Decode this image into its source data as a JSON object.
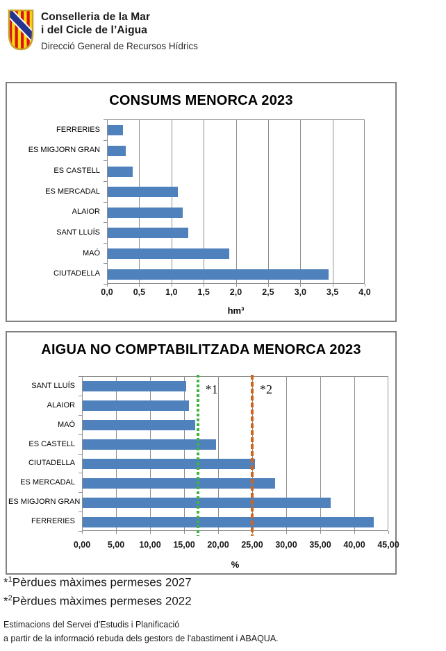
{
  "header": {
    "line1": "Conselleria de la Mar",
    "line2": "i del Cicle de l’Aigua",
    "line3": "Direcció General de Recursos Hídrics",
    "logo": "escut-illes-balears"
  },
  "chart_data": [
    {
      "type": "bar",
      "orientation": "horizontal",
      "title": "CONSUMS MENORCA 2023",
      "categories": [
        "FERRERIES",
        "ES MIGJORN GRAN",
        "ES CASTELL",
        "ES MERCADAL",
        "ALAIOR",
        "SANT LLUÍS",
        "MAÓ",
        "CIUTADELLA"
      ],
      "values": [
        0.24,
        0.28,
        0.39,
        1.09,
        1.16,
        1.25,
        1.89,
        3.43
      ],
      "xlabel": "hm³",
      "xlim": [
        0,
        4
      ],
      "xtick_step": 0.5,
      "xtick_labels": [
        "0,0",
        "0,5",
        "1,0",
        "1,5",
        "2,0",
        "2,5",
        "3,0",
        "3,5",
        "4,0"
      ],
      "bar_color": "#4F81BD",
      "grid": true,
      "legend": null
    },
    {
      "type": "bar",
      "orientation": "horizontal",
      "title": "AIGUA NO COMPTABILITZADA MENORCA 2023",
      "categories": [
        "SANT LLUÍS",
        "ALAIOR",
        "MAÓ",
        "ES CASTELL",
        "CIUTADELLA",
        "ES MERCADAL",
        "ES MIGJORN GRAN",
        "FERRERIES"
      ],
      "values": [
        15.2,
        15.6,
        16.5,
        19.6,
        25.3,
        28.3,
        36.4,
        42.8
      ],
      "xlabel": "%",
      "xlim": [
        0,
        45
      ],
      "xtick_step": 5,
      "xtick_labels": [
        "0,00",
        "5,00",
        "10,00",
        "15,00",
        "20,00",
        "25,00",
        "30,00",
        "35,00",
        "40,00",
        "45,00"
      ],
      "bar_color": "#4F81BD",
      "grid": true,
      "legend": null,
      "ref_lines": [
        {
          "value": 17,
          "label": "*1",
          "color": "#3FB53F",
          "style": "dotted"
        },
        {
          "value": 25,
          "label": "*2",
          "color": "#D2641E",
          "style": "dashed"
        }
      ]
    }
  ],
  "footnotes": {
    "note1": {
      "marker": "*",
      "sup": "1",
      "text": "Pèrdues màximes permeses 2027"
    },
    "note2": {
      "marker": "*",
      "sup": "2",
      "text": "Pèrdues màximes permeses 2022"
    },
    "source1": "Estimacions del Servei d'Estudis i Planificació",
    "source2": "a partir de la informació rebuda dels gestors de l'abastiment i ABAQUA."
  },
  "colors": {
    "bar_blue": "#4F81BD",
    "gridline_gray": "#8E8E8E",
    "box_border_gray": "#808080",
    "ref_green": "#3FB53F",
    "ref_orange": "#D2641E",
    "shield_red": "#DA121A",
    "shield_yellow": "#FCDD09",
    "shield_blue": "#26348B",
    "shield_gold": "#C9A227"
  }
}
